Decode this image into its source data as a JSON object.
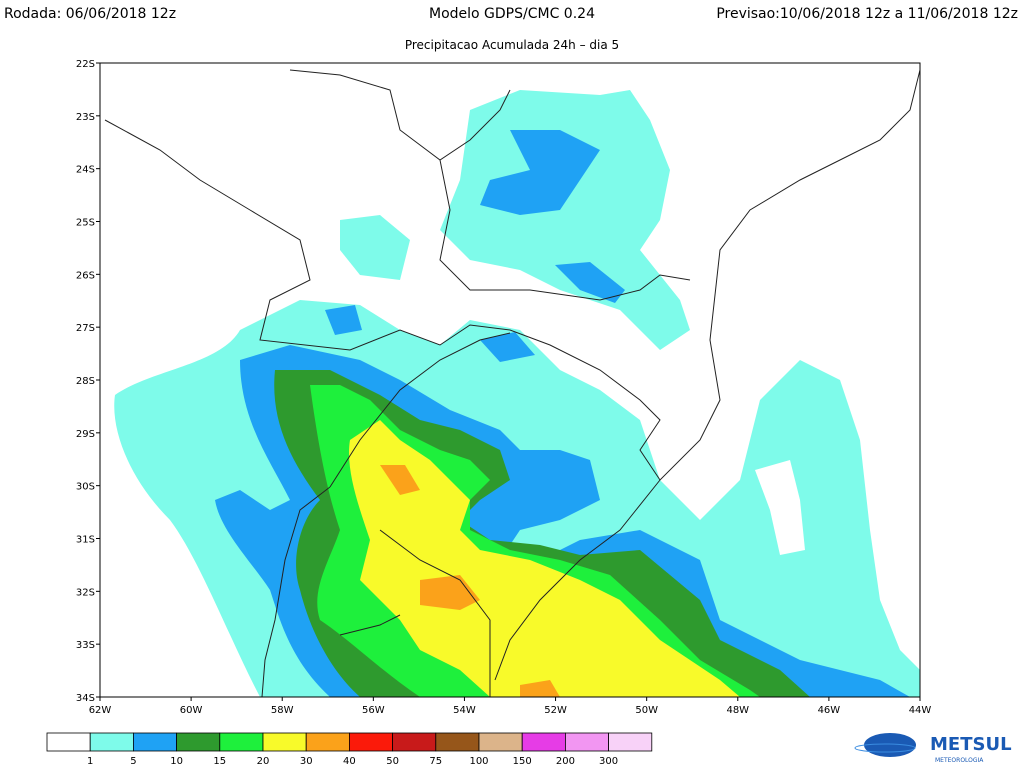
{
  "header": {
    "run": "Rodada: 06/06/2018 12z",
    "model": "Modelo GDPS/CMC 0.24",
    "forecast": "Previsao:10/06/2018 12z a 11/06/2018 12z",
    "subtitle": "Precipitacao Acumulada 24h – dia 5"
  },
  "map": {
    "lat_labels": [
      "22S",
      "23S",
      "24S",
      "25S",
      "26S",
      "27S",
      "28S",
      "29S",
      "30S",
      "31S",
      "32S",
      "33S",
      "34S"
    ],
    "lon_labels": [
      "62W",
      "60W",
      "58W",
      "56W",
      "54W",
      "52W",
      "50W",
      "48W",
      "46W",
      "44W"
    ]
  },
  "colorbar": {
    "labels": [
      "1",
      "5",
      "10",
      "15",
      "20",
      "30",
      "40",
      "50",
      "75",
      "100",
      "150",
      "200",
      "300"
    ],
    "colors": [
      "#ffffff",
      "#7efbea",
      "#1fa2f4",
      "#2e9a2e",
      "#1ef03c",
      "#f8fa2a",
      "#fba21a",
      "#fb1a0a",
      "#c81a1a",
      "#96561a",
      "#dcb48a",
      "#e63ce6",
      "#f296f2",
      "#f8d2f8"
    ]
  },
  "logo": {
    "name": "METSUL",
    "tagline": "METEOROLOGIA"
  }
}
